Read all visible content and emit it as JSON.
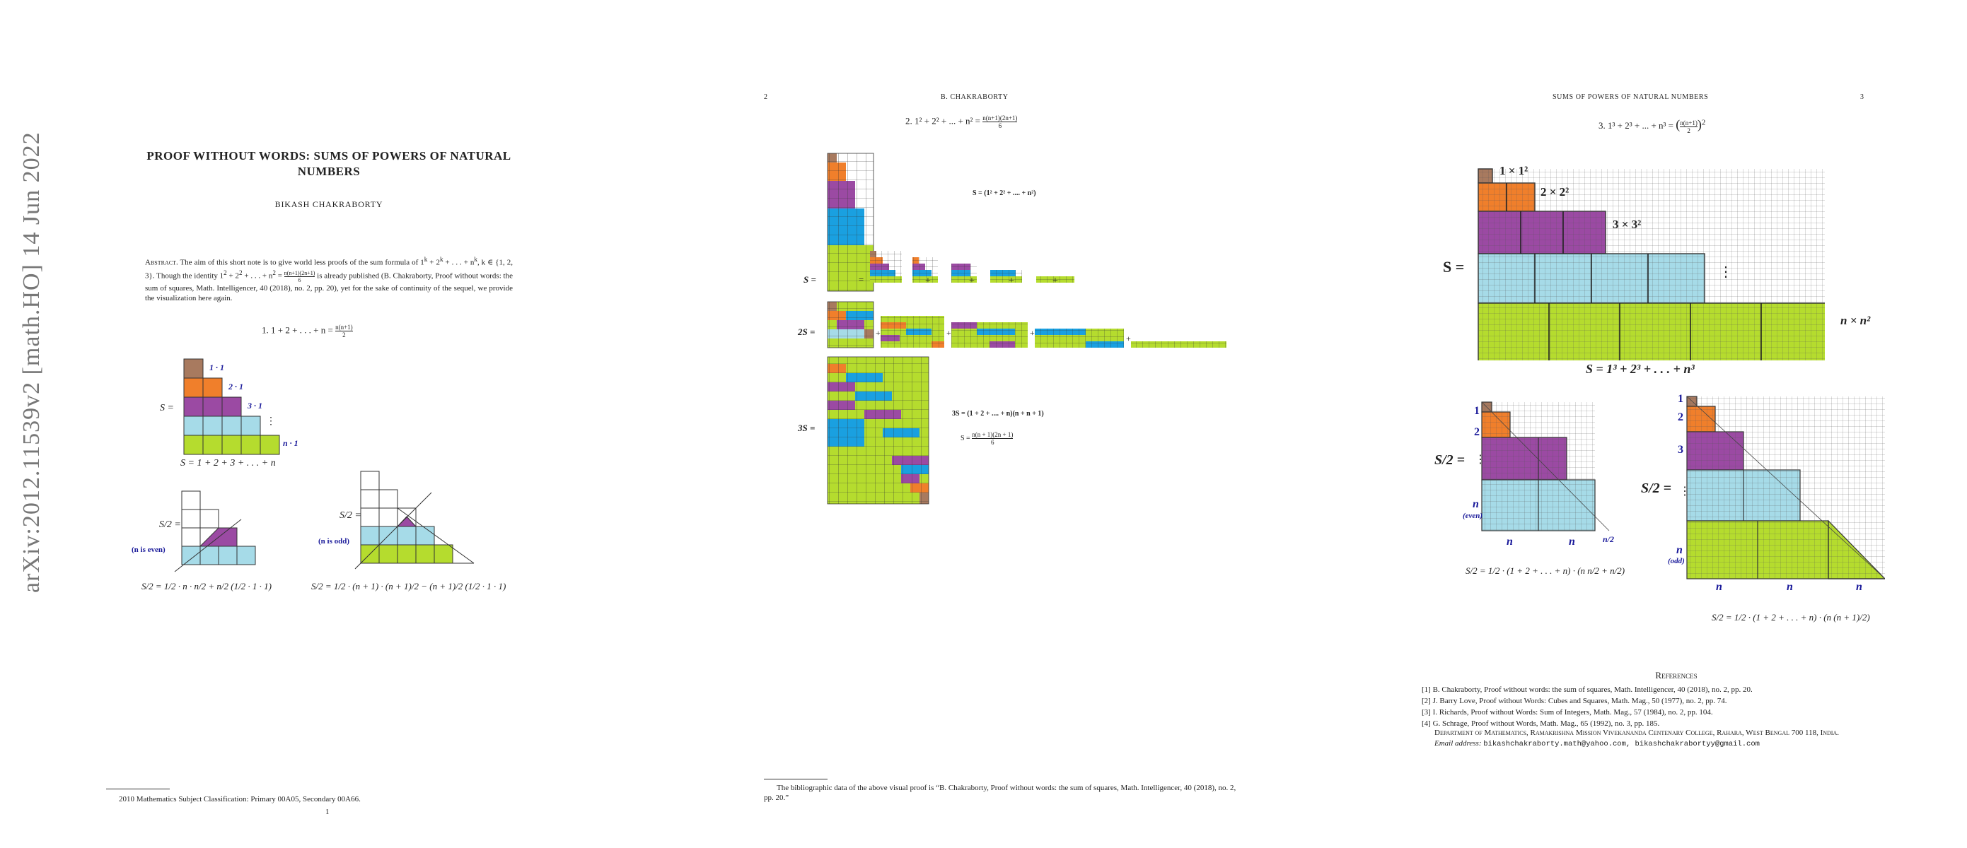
{
  "colors": {
    "brown": "#a87a5f",
    "orange": "#f07f2b",
    "purple": "#9b4aa3",
    "light_blue": "#a6dbe8",
    "blue": "#1aa0e0",
    "green": "#b5dc2e",
    "label_blue": "#1a1a9a"
  },
  "page1": {
    "arxiv_stamp": "arXiv:2012.11539v2  [math.HO]  14 Jun 2022",
    "title": "PROOF WITHOUT WORDS: SUMS OF POWERS OF NATURAL NUMBERS",
    "author": "BIKASH CHAKRABORTY",
    "abstract_label": "Abstract.",
    "abstract_text_1": " The aim of this short note is to give world less proofs of the sum formula of 1",
    "abstract_text_2": " + 2",
    "abstract_text_3": " + . . . + n",
    "abstract_text_4": ", k ∈ {1, 2, 3}. Though the identity 1",
    "abstract_text_5": " + 2",
    "abstract_text_6": " + . . . + n",
    "abstract_text_7": " = ",
    "abstract_text_8": " is already published (B. Chakraborty, Proof without words: the sum of squares, Math. Intelligencer, 40 (2018), no. 2, pp. 20), yet for the sake of continuity of the sequel, we provide the visualization here again.",
    "abstract_sup_k": "k",
    "abstract_sup_2": "2",
    "abstract_frac_num": "n(n+1)(2n+1)",
    "abstract_frac_den": "6",
    "section1": "1. 1 + 2 + . . . + n = ",
    "section1_num": "n(n+1)",
    "section1_den": "2",
    "row_labels": [
      "1 · 1",
      "2 · 1",
      "3 · 1",
      "⋮",
      "n · 1"
    ],
    "s_label": "S =",
    "s_sum": "S = 1 + 2 + 3 + . . . + n",
    "half_s": "S/2 =",
    "n_even": "(n is even)",
    "n_odd": "(n is odd)",
    "formula_even": "S/2 = 1/2 · n · n/2 + n/2 (1/2 · 1 · 1)",
    "formula_odd": "S/2 = 1/2 · (n + 1) · (n + 1)/2 − (n + 1)/2 (1/2 · 1 · 1)",
    "footnote": "2010 Mathematics Subject Classification: Primary 00A05, Secondary 00A66.",
    "page_number": "1"
  },
  "page2": {
    "header_page": "2",
    "header_author": "B. CHAKRABORTY",
    "section2": "2. 1² + 2² + ... + n² = ",
    "section2_num": "n(n+1)(2n+1)",
    "section2_den": "6",
    "s_def": "S = (1² + 2² + .... + n²)",
    "s_label": "S =",
    "two_s_label": "2S =",
    "three_s_label": "3S =",
    "eq_sign": "=",
    "plus": "+",
    "three_s_eq": "3S = (1 + 2 + .... + n)(n + n + 1)",
    "s_result_lhs": "S = ",
    "s_result_num": "n(n + 1)(2n + 1)",
    "s_result_den": "6",
    "footnote": "The bibliographic data of the above visual proof is “B. Chakraborty, Proof without words: the sum of squares, Math. Intelligencer, 40 (2018), no. 2, pp. 20.”"
  },
  "page3": {
    "header_title": "SUMS OF POWERS OF NATURAL NUMBERS",
    "header_page": "3",
    "section3": "3. 1³ + 2³ + ... + n³ = ",
    "section3_frac_num": "n(n+1)",
    "section3_frac_den": "2",
    "section3_power": "2",
    "cube_labels": [
      "1 × 1²",
      "2 × 2²",
      "3 × 3²",
      "⋮",
      "n × n²"
    ],
    "s_label": "S =",
    "s_sum": "S = 1³ + 2³ + . . . + n³",
    "half_s": "S/2 =",
    "left_labels": [
      "1",
      "2",
      "⋮",
      "n"
    ],
    "left_even": "(even)",
    "bottom_even": [
      "n",
      "n",
      "n/2"
    ],
    "right_labels": [
      "1",
      "2",
      "3",
      "⋮",
      "n"
    ],
    "right_odd": "(odd)",
    "bottom_odd": [
      "n",
      "n",
      "n"
    ],
    "formula_even": "S/2 = 1/2 · (1 + 2 + . . . + n) · (n n/2 + n/2)",
    "formula_odd": "S/2 = 1/2 · (1 + 2 + . . . + n) · (n (n + 1)/2)",
    "references_title": "References",
    "references": [
      "[1]  B. Chakraborty, Proof without words: the sum of squares, Math. Intelligencer, 40 (2018), no. 2, pp. 20.",
      "[2]  J. Barry Love, Proof without Words: Cubes and Squares, Math. Mag., 50 (1977), no. 2, pp. 74.",
      "[3]  I. Richards, Proof without Words: Sum of Integers, Math. Mag., 57 (1984), no. 2, pp. 104.",
      "[4]  G. Schrage, Proof without Words, Math. Mag., 65 (1992), no. 3, pp. 185."
    ],
    "affiliation": "Department of Mathematics, Ramakrishna Mission Vivekananda Centenary College, Rahara, West Bengal 700 118, India.",
    "email_label": "Email address:",
    "email_value": "bikashchakraborty.math@yahoo.com, bikashchakrabortyy@gmail.com"
  }
}
